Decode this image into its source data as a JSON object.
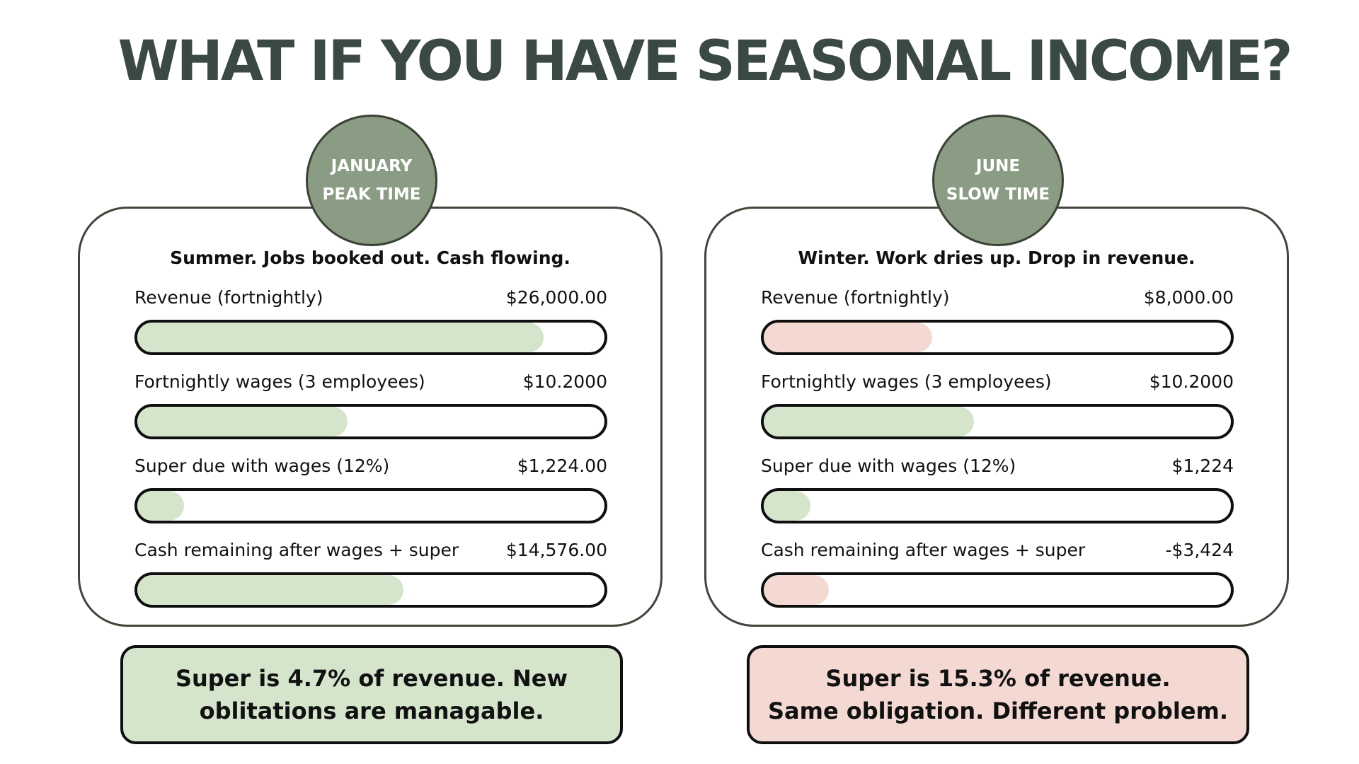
{
  "title": "WHAT IF YOU HAVE SEASONAL INCOME?",
  "colors": {
    "title": "#3a4a42",
    "badge": "#8a9d84",
    "good_fill": "#d5e5cc",
    "bad_fill": "#f4d9d2"
  },
  "panels": [
    {
      "badge": {
        "line1": "JANUARY",
        "line2": "PEAK TIME"
      },
      "subtitle": "Summer. Jobs booked out. Cash flowing.",
      "rows": [
        {
          "label": "Revenue (fortnightly)",
          "value": "$26,000.00",
          "fill": 0.87,
          "tone": "green"
        },
        {
          "label": "Fortnightly wages (3 employees)",
          "value": "$10.2000",
          "fill": 0.45,
          "tone": "green"
        },
        {
          "label": "Super due with wages (12%)",
          "value": "$1,224.00",
          "fill": 0.1,
          "tone": "green"
        },
        {
          "label": "Cash remaining after wages + super",
          "value": "$14,576.00",
          "fill": 0.57,
          "tone": "green"
        }
      ],
      "note": {
        "line1": "Super is 4.7% of revenue. New",
        "line2": "oblitations are managable.",
        "tone": "green"
      }
    },
    {
      "badge": {
        "line1": "JUNE",
        "line2": "SLOW TIME"
      },
      "subtitle": "Winter. Work dries up. Drop in revenue.",
      "rows": [
        {
          "label": "Revenue (fortnightly)",
          "value": "$8,000.00",
          "fill": 0.36,
          "tone": "pink"
        },
        {
          "label": "Fortnightly wages (3 employees)",
          "value": "$10.2000",
          "fill": 0.45,
          "tone": "green"
        },
        {
          "label": "Super due with wages (12%)",
          "value": "$1,224",
          "fill": 0.1,
          "tone": "green"
        },
        {
          "label": "Cash remaining after wages + super",
          "value": "-$3,424",
          "fill": 0.14,
          "tone": "pink"
        }
      ],
      "note": {
        "line1": "Super is 15.3% of revenue.",
        "line2": "Same obligation. Different problem.",
        "tone": "pink"
      }
    }
  ]
}
